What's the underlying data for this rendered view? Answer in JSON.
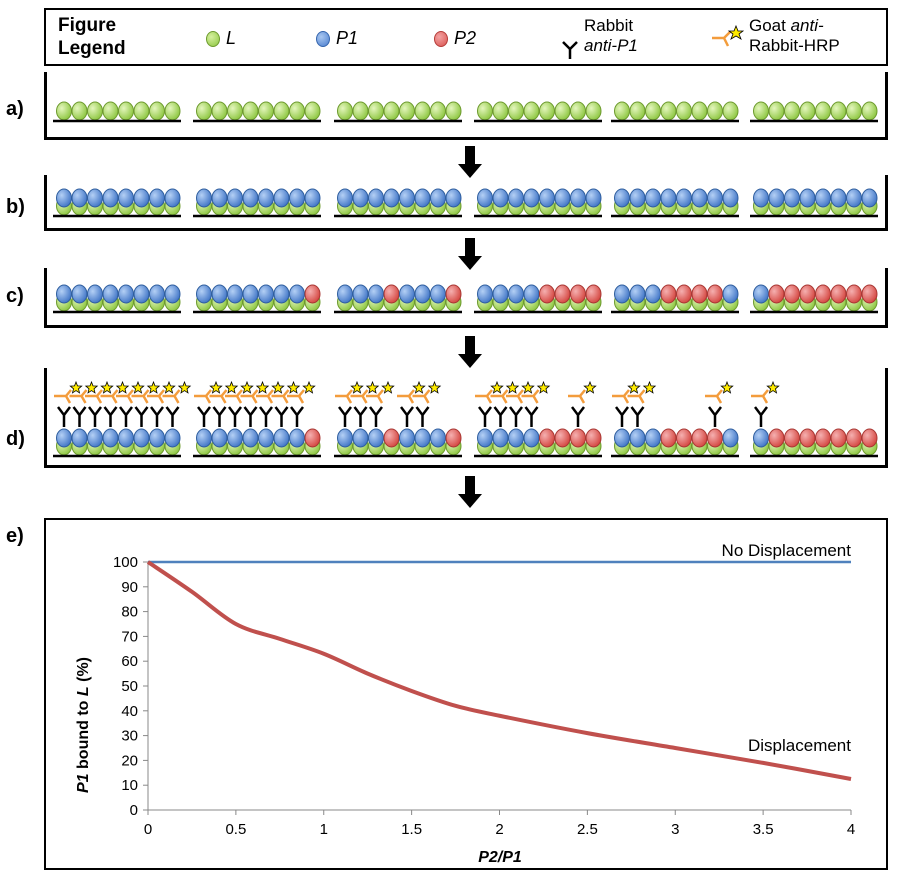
{
  "legend": {
    "title": "Figure\nLegend",
    "items": [
      {
        "label": "L",
        "kind": "l"
      },
      {
        "label": "P1",
        "kind": "p1"
      },
      {
        "label": "P2",
        "kind": "p2"
      }
    ],
    "antibody_line1": "Rabbit",
    "antibody_line2": "anti-P1",
    "secondary_line1a": "Goat ",
    "secondary_line1b": "anti-",
    "secondary_line2": "Rabbit-HRP"
  },
  "panels": {
    "a": "a)",
    "b": "b)",
    "c": "c)",
    "d": "d)",
    "e": "e)"
  },
  "colors": {
    "L": "#8cc63f",
    "P1": "#4a7ecf",
    "P2": "#d9534f",
    "no_displacement": "#4f81bd",
    "displacement": "#c0504d"
  },
  "panel_c_groups": [
    [
      "p1",
      "p1",
      "p1",
      "p1",
      "p1",
      "p1",
      "p1",
      "p1"
    ],
    [
      "p1",
      "p1",
      "p1",
      "p1",
      "p1",
      "p1",
      "p1",
      "p2"
    ],
    [
      "p1",
      "p1",
      "p1",
      "p2",
      "p1",
      "p1",
      "p1",
      "p2"
    ],
    [
      "p1",
      "p1",
      "p1",
      "p1",
      "p2",
      "p2",
      "p2",
      "p2"
    ],
    [
      "p1",
      "p1",
      "p1",
      "p2",
      "p2",
      "p2",
      "p2",
      "p1"
    ],
    [
      "p1",
      "p2",
      "p2",
      "p2",
      "p2",
      "p2",
      "p2",
      "p2"
    ]
  ],
  "chart_data": {
    "type": "line",
    "xlabel": "P2/P1",
    "ylabel_parts": [
      "P1",
      " bound to ",
      "L",
      " (%)"
    ],
    "xlim": [
      0,
      4
    ],
    "ylim": [
      0,
      100
    ],
    "xticks": [
      "0",
      "0.5",
      "1",
      "1.5",
      "2",
      "2.5",
      "3",
      "3.5",
      "4"
    ],
    "yticks": [
      "0",
      "10",
      "20",
      "30",
      "40",
      "50",
      "60",
      "70",
      "80",
      "90",
      "100"
    ],
    "series": [
      {
        "name": "No Displacement",
        "x": [
          0,
          4
        ],
        "y": [
          100,
          100
        ]
      },
      {
        "name": "Displacement",
        "x": [
          0,
          0.25,
          0.5,
          0.75,
          1,
          1.25,
          1.5,
          1.75,
          2,
          2.5,
          3,
          3.5,
          4
        ],
        "y": [
          100,
          88,
          75,
          69,
          63,
          55,
          48,
          42,
          38,
          31,
          25,
          19,
          12.5
        ]
      }
    ]
  }
}
